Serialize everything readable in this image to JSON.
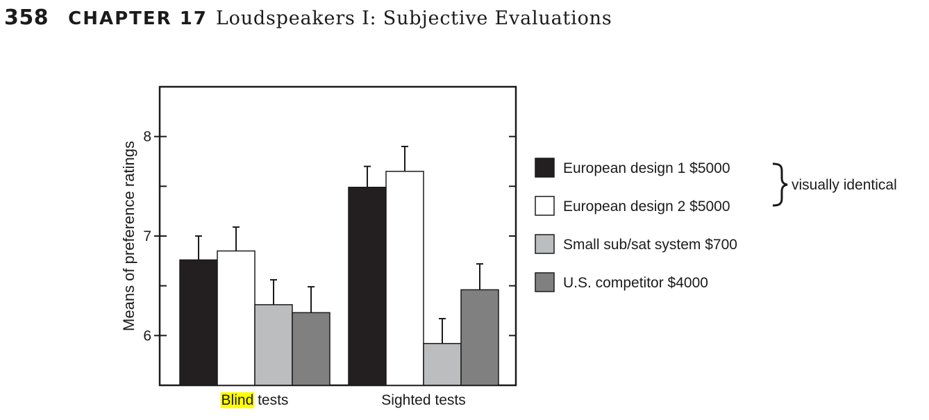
{
  "page_header": {
    "page_number": "358",
    "chapter_label": "CHAPTER 17",
    "chapter_title": "Loudspeakers I: Subjective Evaluations"
  },
  "chart_data": {
    "type": "bar",
    "ylabel": "Means of preference ratings",
    "ylim": [
      5.5,
      8.5
    ],
    "yticks": [
      6,
      7,
      8
    ],
    "grid": false,
    "legend_position": "right",
    "categories": [
      {
        "pre": "",
        "highlighted": "Blind",
        "post": " tests",
        "full": "Blind tests"
      },
      {
        "pre": "Sighted tests",
        "highlighted": "",
        "post": "",
        "full": "Sighted tests"
      }
    ],
    "series": [
      {
        "name": "European design 1  $5000",
        "color": "#231f20",
        "values": [
          6.76,
          7.49
        ],
        "error": [
          0.24,
          0.21
        ]
      },
      {
        "name": "European design 2  $5000",
        "color": "#ffffff",
        "values": [
          6.85,
          7.65
        ],
        "error": [
          0.24,
          0.25
        ]
      },
      {
        "name": "Small sub/sat system $700",
        "color": "#bcbdbf",
        "values": [
          6.31,
          5.92
        ],
        "error": [
          0.25,
          0.25
        ]
      },
      {
        "name": "U.S. competitor  $4000",
        "color": "#808080",
        "values": [
          6.23,
          6.46
        ],
        "error": [
          0.26,
          0.26
        ]
      }
    ],
    "annotations": [
      {
        "text": "visually identical",
        "groups_series": [
          0,
          1
        ]
      }
    ]
  }
}
